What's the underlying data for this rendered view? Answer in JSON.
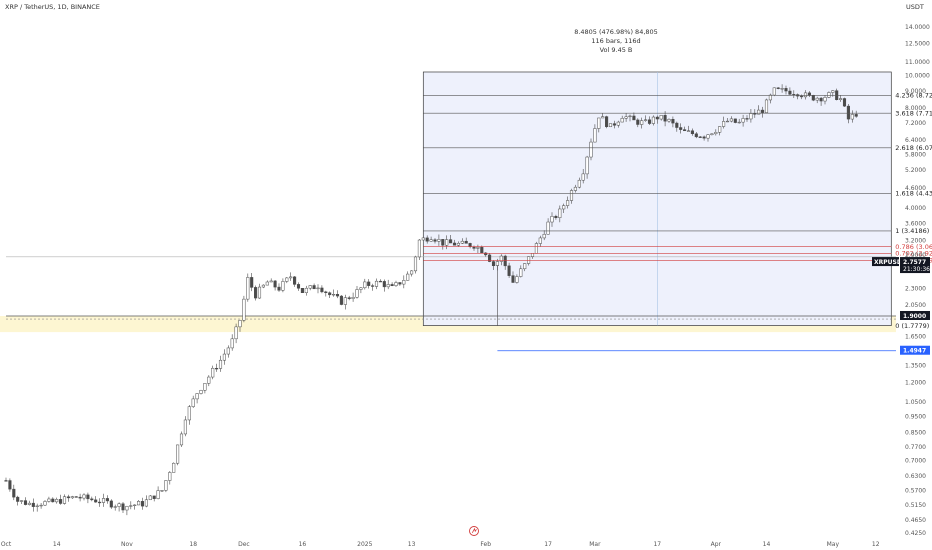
{
  "header": {
    "symbol_line": "XRP / TetherUS, 1D, BINANCE",
    "currency": "USDT"
  },
  "measure": {
    "line1": "8.4805 (476.98%) 84,805",
    "line2": "116 bars, 116d",
    "line3": "Vol 9.45 B"
  },
  "chart_data": {
    "type": "candlestick",
    "y_scale": "log",
    "ylim": [
      0.41,
      15.3
    ],
    "y_ticks": [
      {
        "v": 14.0,
        "label": "14.0000"
      },
      {
        "v": 12.5,
        "label": "12.5000"
      },
      {
        "v": 11.0,
        "label": "11.0000"
      },
      {
        "v": 10.0,
        "label": "10.0000"
      },
      {
        "v": 9.0,
        "label": "9.0000"
      },
      {
        "v": 8.0,
        "label": "8.0000"
      },
      {
        "v": 7.2,
        "label": "7.2000"
      },
      {
        "v": 6.4,
        "label": "6.4000"
      },
      {
        "v": 5.8,
        "label": "5.8000"
      },
      {
        "v": 5.2,
        "label": "5.2000"
      },
      {
        "v": 4.6,
        "label": "4.6000"
      },
      {
        "v": 4.0,
        "label": "4.0000"
      },
      {
        "v": 3.6,
        "label": "3.6000"
      },
      {
        "v": 3.2,
        "label": "3.2000"
      },
      {
        "v": 2.9,
        "label": "2.9000"
      },
      {
        "v": 2.3,
        "label": "2.3000"
      },
      {
        "v": 2.05,
        "label": "2.0500"
      },
      {
        "v": 1.65,
        "label": "1.6500"
      },
      {
        "v": 1.35,
        "label": "1.3500"
      },
      {
        "v": 1.2,
        "label": "1.2000"
      },
      {
        "v": 1.05,
        "label": "1.0500"
      },
      {
        "v": 0.95,
        "label": "0.9500"
      },
      {
        "v": 0.85,
        "label": "0.8500"
      },
      {
        "v": 0.77,
        "label": "0.7700"
      },
      {
        "v": 0.7,
        "label": "0.7000"
      },
      {
        "v": 0.63,
        "label": "0.6300"
      },
      {
        "v": 0.57,
        "label": "0.5700"
      },
      {
        "v": 0.515,
        "label": "0.5150"
      },
      {
        "v": 0.465,
        "label": "0.4650"
      },
      {
        "v": 0.425,
        "label": "0.4250"
      }
    ],
    "x_ticks": [
      {
        "label": "Oct",
        "day": 0
      },
      {
        "label": "14",
        "day": 13
      },
      {
        "label": "Nov",
        "day": 31
      },
      {
        "label": "18",
        "day": 48
      },
      {
        "label": "Dec",
        "day": 61
      },
      {
        "label": "16",
        "day": 76
      },
      {
        "label": "2025",
        "day": 92
      },
      {
        "label": "13",
        "day": 104
      },
      {
        "label": "Feb",
        "day": 123
      },
      {
        "label": "17",
        "day": 139
      },
      {
        "label": "Mar",
        "day": 151
      },
      {
        "label": "17",
        "day": 167
      },
      {
        "label": "Apr",
        "day": 182
      },
      {
        "label": "14",
        "day": 195
      },
      {
        "label": "May",
        "day": 212
      },
      {
        "label": "12",
        "day": 223
      },
      {
        "label": "Ju",
        "day": 243
      }
    ],
    "price_path": [
      [
        0,
        0.61
      ],
      [
        3,
        0.53
      ],
      [
        6,
        0.52
      ],
      [
        12,
        0.525
      ],
      [
        18,
        0.545
      ],
      [
        24,
        0.53
      ],
      [
        30,
        0.51
      ],
      [
        35,
        0.52
      ],
      [
        40,
        0.57
      ],
      [
        43,
        0.7
      ],
      [
        46,
        0.95
      ],
      [
        49,
        1.12
      ],
      [
        52,
        1.25
      ],
      [
        55,
        1.4
      ],
      [
        58,
        1.6
      ],
      [
        60,
        1.85
      ],
      [
        62,
        2.45
      ],
      [
        64,
        2.2
      ],
      [
        67,
        2.4
      ],
      [
        70,
        2.3
      ],
      [
        73,
        2.5
      ],
      [
        76,
        2.25
      ],
      [
        80,
        2.35
      ],
      [
        83,
        2.2
      ],
      [
        86,
        2.1
      ],
      [
        89,
        2.2
      ],
      [
        92,
        2.35
      ],
      [
        96,
        2.4
      ],
      [
        99,
        2.3
      ],
      [
        102,
        2.45
      ],
      [
        104,
        2.6
      ],
      [
        106,
        3.2
      ],
      [
        109,
        3.3
      ],
      [
        112,
        3.15
      ],
      [
        116,
        3.12
      ],
      [
        120,
        3.1
      ],
      [
        123,
        2.95
      ],
      [
        125,
        2.7
      ],
      [
        127,
        2.85
      ],
      [
        130,
        2.4
      ],
      [
        133,
        2.7
      ],
      [
        136,
        3.1
      ],
      [
        139,
        3.6
      ],
      [
        142,
        3.9
      ],
      [
        145,
        4.5
      ],
      [
        148,
        5.2
      ],
      [
        150,
        6.4
      ],
      [
        152,
        7.6
      ],
      [
        155,
        7.0
      ],
      [
        158,
        7.6
      ],
      [
        161,
        7.3
      ],
      [
        164,
        7.2
      ],
      [
        167,
        7.5
      ],
      [
        170,
        7.3
      ],
      [
        173,
        6.8
      ],
      [
        176,
        6.7
      ],
      [
        179,
        6.6
      ],
      [
        182,
        6.9
      ],
      [
        185,
        7.3
      ],
      [
        188,
        7.2
      ],
      [
        191,
        7.6
      ],
      [
        194,
        7.9
      ],
      [
        197,
        9.0
      ],
      [
        200,
        9.0
      ],
      [
        203,
        8.9
      ],
      [
        206,
        8.6
      ],
      [
        209,
        8.6
      ],
      [
        212,
        8.8
      ],
      [
        214,
        8.5
      ],
      [
        216,
        7.4
      ],
      [
        218,
        7.7
      ]
    ],
    "ohlc_note": "candle values approximated from chart",
    "horizontal_lines": [
      {
        "price": 2.86,
        "color": "#b0b0b0",
        "style": "solid",
        "from_day": 0
      },
      {
        "price": 1.9,
        "color": "#555555",
        "style": "solid",
        "from_day": 0
      },
      {
        "price": 1.86,
        "color": "#888888",
        "style": "dashed",
        "from_day": 0
      },
      {
        "price": 1.4947,
        "color": "#2962ff",
        "style": "solid",
        "from_day": 126
      }
    ],
    "zone": {
      "top": 1.9,
      "bottom": 1.7,
      "color": "#fdf6d2"
    },
    "range_box": {
      "start_day": 107,
      "end_day": 227,
      "top": 10.25,
      "bottom": 1.7779
    },
    "fib_levels": [
      {
        "label": "4.236 (8.7276)",
        "price": 8.7276,
        "red": false
      },
      {
        "label": "3.618 (7.7137)",
        "price": 7.7137,
        "red": false
      },
      {
        "label": "2.618 (6.0731)",
        "price": 6.0731,
        "red": false
      },
      {
        "label": "1.618 (4.4325)",
        "price": 4.4325,
        "red": false
      },
      {
        "label": "1 (3.4186)",
        "price": 3.4186,
        "red": false
      },
      {
        "label": "0.786 (3.0675)",
        "price": 3.0675,
        "red": true
      },
      {
        "label": "0.702 (2.9297)",
        "price": 2.9297,
        "red": true
      },
      {
        "label": "0.618 (2.7918)",
        "price": 2.7918,
        "red": true
      },
      {
        "label": "0 (1.7779)",
        "price": 1.7779,
        "red": false
      }
    ],
    "price_tags": [
      {
        "label": "XRPUSDT",
        "value": "2.7577",
        "sub": "21:30:36",
        "price": 2.7577,
        "bg": "#131722"
      },
      {
        "label": "",
        "value": "1.9000",
        "sub": "",
        "price": 1.9,
        "bg": "#131722"
      },
      {
        "label": "",
        "value": "1.4947",
        "sub": "",
        "price": 1.4947,
        "bg": "#2962ff"
      }
    ],
    "colors": {
      "up": "#ffffff",
      "down": "#4a4a4a",
      "box_fill": "#eef1fc",
      "box_stroke": "#3a3a3a",
      "vline": "#a9c4e6"
    }
  },
  "footer": {
    "icon": "tradingview-logo-icon"
  }
}
